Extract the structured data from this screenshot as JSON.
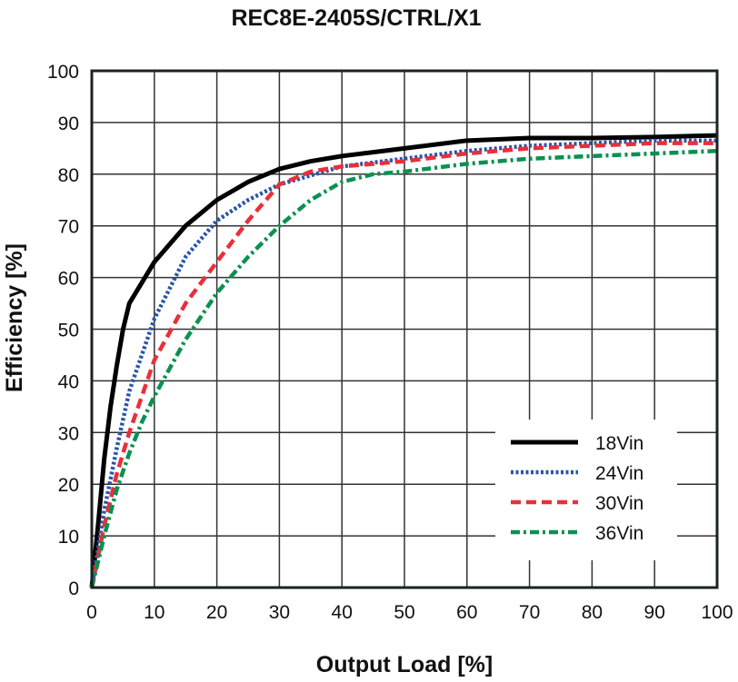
{
  "chart_data": {
    "type": "line",
    "title": "REC8E-2405S/CTRL/X1",
    "xlabel": "Output Load [%]",
    "ylabel": "Efficiency [%]",
    "xlim": [
      0,
      100
    ],
    "ylim": [
      0,
      100
    ],
    "xticks": [
      "0",
      "10",
      "20",
      "30",
      "40",
      "50",
      "60",
      "70",
      "80",
      "90",
      "100"
    ],
    "yticks": [
      "0",
      "10",
      "20",
      "30",
      "40",
      "50",
      "60",
      "70",
      "80",
      "90",
      "100"
    ],
    "grid": true,
    "legend_position": "bottom-right",
    "series": [
      {
        "name": "18Vin",
        "color": "#000000",
        "style": "solid",
        "x": [
          0,
          1,
          2,
          3,
          4,
          5,
          6,
          8,
          10,
          15,
          20,
          25,
          30,
          35,
          40,
          50,
          60,
          70,
          80,
          90,
          100
        ],
        "y": [
          0,
          12,
          25,
          35,
          43,
          50,
          55,
          59,
          63,
          70,
          75,
          78.5,
          81,
          82.5,
          83.5,
          85,
          86.5,
          87,
          87,
          87.2,
          87.5
        ]
      },
      {
        "name": "24Vin",
        "color": "#2a55a8",
        "style": "dotted",
        "x": [
          0,
          2,
          4,
          6,
          8,
          10,
          15,
          20,
          25,
          30,
          40,
          50,
          60,
          70,
          80,
          90,
          100
        ],
        "y": [
          0,
          15,
          27,
          38,
          45,
          52,
          64,
          71,
          75,
          78,
          81.5,
          83,
          84.5,
          85.5,
          86,
          86.5,
          86.5
        ]
      },
      {
        "name": "30Vin",
        "color": "#e8303a",
        "style": "dashed",
        "x": [
          0,
          2,
          4,
          6,
          8,
          10,
          15,
          20,
          25,
          30,
          35,
          40,
          50,
          60,
          70,
          80,
          90,
          100
        ],
        "y": [
          0,
          12,
          22,
          30,
          37,
          44,
          55,
          63,
          71,
          78,
          80.5,
          81.5,
          82.5,
          84,
          85,
          85.5,
          86,
          86
        ]
      },
      {
        "name": "36Vin",
        "color": "#0a9150",
        "style": "dash-dot",
        "x": [
          0,
          2,
          4,
          6,
          8,
          10,
          15,
          20,
          25,
          30,
          35,
          40,
          45,
          50,
          60,
          70,
          80,
          90,
          100
        ],
        "y": [
          0,
          10,
          19,
          26,
          32,
          37,
          48,
          57,
          64,
          70,
          75,
          78.5,
          80,
          80.5,
          82,
          83,
          83.5,
          84,
          84.5
        ]
      }
    ]
  }
}
